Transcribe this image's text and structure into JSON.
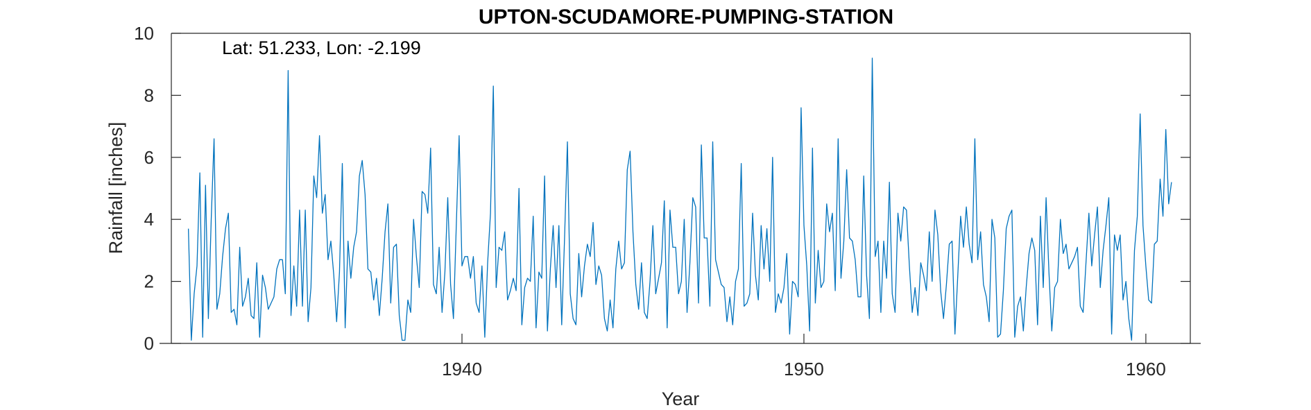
{
  "chart_data": {
    "type": "line",
    "title": "UPTON-SCUDAMORE-PUMPING-STATION",
    "annotation": "Lat: 51.233, Lon: -2.199",
    "xlabel": "Year",
    "ylabel": "Rainfall [inches]",
    "xlim": [
      1931.5,
      1961.3
    ],
    "ylim": [
      0,
      10
    ],
    "xticks": [
      1940,
      1950,
      1960
    ],
    "yticks": [
      0,
      2,
      4,
      6,
      8,
      10
    ],
    "grid": false,
    "line_color": "#0072BD",
    "series": [
      {
        "x_start": 1932.0,
        "x_step": 0.083333,
        "values": [
          3.7,
          0.1,
          1.6,
          2.5,
          5.5,
          0.2,
          5.1,
          0.8,
          4.0,
          6.6,
          1.1,
          1.6,
          2.8,
          3.7,
          4.2,
          1.0,
          1.1,
          0.6,
          3.1,
          1.2,
          1.5,
          2.1,
          0.9,
          0.8,
          2.6,
          0.2,
          2.2,
          1.8,
          1.1,
          1.3,
          1.5,
          2.4,
          2.7,
          2.7,
          1.6,
          8.8,
          0.9,
          2.5,
          1.2,
          4.3,
          1.2,
          4.3,
          0.7,
          1.8,
          5.4,
          4.7,
          6.7,
          4.2,
          4.8,
          2.7,
          3.3,
          2.2,
          0.7,
          2.3,
          5.8,
          0.5,
          3.3,
          2.1,
          3.1,
          3.6,
          5.4,
          5.9,
          4.8,
          2.4,
          2.3,
          1.4,
          2.1,
          0.9,
          2.1,
          3.6,
          4.5,
          1.3,
          3.1,
          3.2,
          0.9,
          0.1,
          0.1,
          1.4,
          1.0,
          4.0,
          2.8,
          1.8,
          4.9,
          4.8,
          4.2,
          6.3,
          1.9,
          1.6,
          3.1,
          1.0,
          2.3,
          4.7,
          1.9,
          0.8,
          3.8,
          6.7,
          2.5,
          2.8,
          2.8,
          2.1,
          2.8,
          1.3,
          1.0,
          2.5,
          0.2,
          2.6,
          4.2,
          8.3,
          1.8,
          3.1,
          3.0,
          3.6,
          1.4,
          1.7,
          2.1,
          1.7,
          5.0,
          0.6,
          1.8,
          2.1,
          2.0,
          4.1,
          0.5,
          2.3,
          2.1,
          5.4,
          0.4,
          2.4,
          3.8,
          1.8,
          3.8,
          0.6,
          3.4,
          6.5,
          1.6,
          0.8,
          0.6,
          2.9,
          1.5,
          2.5,
          3.2,
          2.8,
          3.9,
          1.9,
          2.5,
          2.2,
          0.8,
          0.4,
          1.4,
          0.5,
          2.4,
          3.3,
          2.4,
          2.6,
          5.6,
          6.2,
          3.6,
          1.9,
          1.1,
          2.6,
          1.0,
          0.8,
          2.0,
          3.8,
          1.6,
          2.1,
          2.6,
          4.6,
          0.5,
          4.3,
          3.1,
          3.1,
          1.6,
          2.0,
          4.0,
          1.0,
          2.6,
          4.7,
          4.4,
          1.3,
          6.4,
          3.4,
          3.4,
          1.2,
          6.5,
          2.7,
          2.3,
          1.9,
          1.8,
          0.7,
          1.5,
          0.6,
          2.0,
          2.4,
          5.8,
          1.2,
          1.3,
          1.6,
          4.2,
          2.2,
          1.4,
          3.8,
          2.4,
          3.7,
          2.0,
          6.0,
          1.0,
          1.6,
          1.3,
          1.8,
          2.9,
          0.3,
          2.0,
          1.9,
          1.5,
          7.6,
          3.8,
          2.5,
          0.4,
          6.3,
          1.3,
          3.0,
          1.8,
          2.0,
          4.5,
          3.6,
          4.2,
          1.7,
          6.6,
          2.1,
          3.3,
          5.6,
          3.4,
          3.3,
          2.7,
          1.5,
          1.5,
          5.4,
          2.2,
          0.8,
          9.2,
          2.8,
          3.3,
          1.0,
          3.3,
          2.1,
          5.2,
          1.6,
          1.0,
          4.2,
          3.3,
          4.4,
          4.3,
          2.5,
          1.0,
          1.8,
          0.9,
          2.6,
          2.2,
          1.7,
          3.6,
          2.0,
          4.3,
          3.5,
          1.7,
          0.8,
          1.9,
          3.2,
          3.3,
          0.3,
          2.2,
          4.1,
          3.1,
          4.4,
          3.2,
          2.6,
          6.6,
          2.7,
          3.6,
          1.9,
          1.5,
          0.7,
          4.0,
          3.4,
          0.2,
          0.3,
          1.7,
          3.7,
          4.1,
          4.3,
          0.2,
          1.2,
          1.5,
          0.4,
          1.8,
          2.9,
          3.4,
          3.0,
          0.6,
          4.1,
          1.8,
          4.7,
          2.3,
          0.4,
          1.8,
          2.0,
          4.0,
          2.9,
          3.2,
          2.4,
          2.6,
          2.8,
          3.1,
          1.2,
          1.0,
          2.6,
          4.2,
          2.5,
          3.5,
          4.4,
          1.8,
          3.0,
          3.8,
          4.7,
          0.3,
          3.5,
          3.0,
          3.5,
          1.4,
          2.0,
          0.8,
          0.1,
          3.0,
          4.1,
          7.4,
          3.8,
          2.5,
          1.4,
          1.3,
          3.2,
          3.3,
          5.3,
          4.1,
          6.9,
          4.5,
          5.2
        ]
      }
    ]
  }
}
